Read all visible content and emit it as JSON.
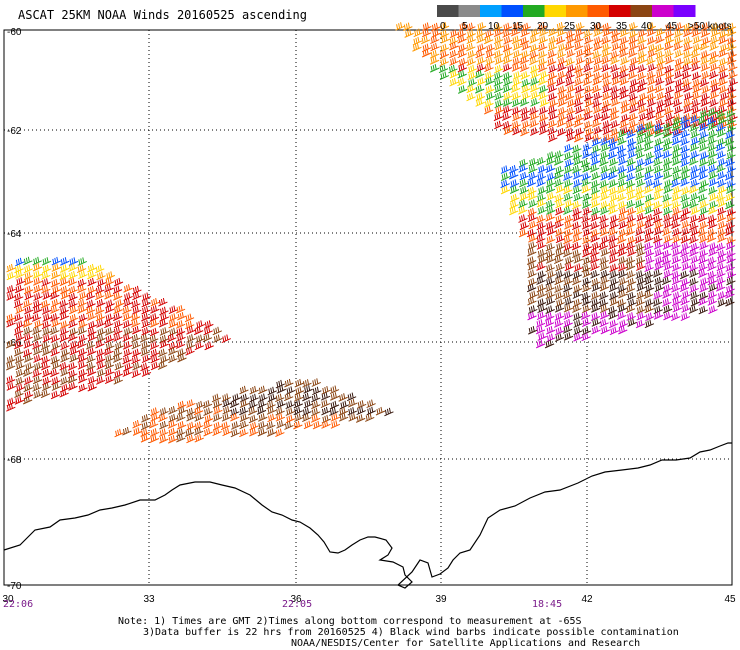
{
  "title": "ASCAT 25KM NOAA Winds 20160525 ascending",
  "legend": {
    "colors": [
      "#4a4a4a",
      "#8a8a8a",
      "#00a0ff",
      "#0050ff",
      "#22aa22",
      "#ffd700",
      "#ff9900",
      "#ff5a00",
      "#d40000",
      "#8b4513",
      "#cc00cc",
      "#7a00ff"
    ],
    "labels": [
      "0",
      "5",
      "10",
      "15",
      "20",
      "25",
      "30",
      "35",
      "40",
      "45",
      ">50 knots"
    ]
  },
  "axes": {
    "lat_labels": [
      "-60",
      "-62",
      "-64",
      "-66",
      "-68",
      "-70"
    ],
    "lon_labels": [
      "30",
      "33",
      "36",
      "39",
      "42",
      "45"
    ]
  },
  "times": [
    "22:06",
    "22:05",
    "18:45"
  ],
  "notes": [
    "Note: 1) Times are GMT 2)Times along bottom correspond to measurement at -65S",
    "3)Data buffer is 22 hrs from 20160525 4) Black wind barbs indicate possible contamination",
    "NOAA/NESDIS/Center for Satellite Applications and Research"
  ]
}
